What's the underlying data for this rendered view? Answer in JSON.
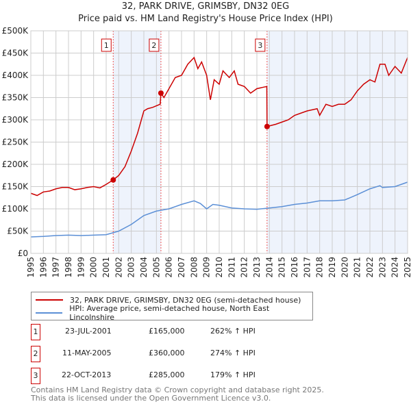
{
  "chart_data": {
    "type": "line",
    "title": "32, PARK DRIVE, GRIMSBY, DN32 0EG",
    "subtitle": "Price paid vs. HM Land Registry's House Price Index (HPI)",
    "xlim": [
      1995,
      2025
    ],
    "ylim": [
      0,
      500000
    ],
    "y_ticks": [
      "£0",
      "£50K",
      "£100K",
      "£150K",
      "£200K",
      "£250K",
      "£300K",
      "£350K",
      "£400K",
      "£450K",
      "£500K"
    ],
    "x_ticks": [
      "1995",
      "1996",
      "1997",
      "1998",
      "1999",
      "2000",
      "2001",
      "2002",
      "2003",
      "2004",
      "2005",
      "2006",
      "2007",
      "2008",
      "2009",
      "2010",
      "2011",
      "2012",
      "2013",
      "2014",
      "2015",
      "2016",
      "2017",
      "2018",
      "2019",
      "2020",
      "2021",
      "2022",
      "2023",
      "2024",
      "2025"
    ],
    "grid": true,
    "series": [
      {
        "name": "32, PARK DRIVE, GRIMSBY, DN32 0EG (semi-detached house)",
        "color": "#cc0000",
        "x": [
          1995,
          1995.5,
          1996,
          1996.5,
          1997,
          1997.5,
          1998,
          1998.5,
          1999,
          1999.5,
          2000,
          2000.5,
          2001,
          2001.56,
          2002,
          2002.5,
          2003,
          2003.5,
          2004,
          2004.3,
          2004.7,
          2005.3,
          2005.36,
          2005.6,
          2006,
          2006.5,
          2007,
          2007.5,
          2008,
          2008.3,
          2008.6,
          2009,
          2009.3,
          2009.6,
          2010,
          2010.3,
          2010.8,
          2011.2,
          2011.5,
          2012,
          2012.5,
          2013,
          2013.79,
          2013.81,
          2014.5,
          2015,
          2015.5,
          2016,
          2016.5,
          2017,
          2017.8,
          2018,
          2018.5,
          2019,
          2019.5,
          2020,
          2020.5,
          2021,
          2021.5,
          2022,
          2022.4,
          2022.8,
          2023.2,
          2023.5,
          2024,
          2024.5,
          2025
        ],
        "y": [
          135000,
          130000,
          138000,
          140000,
          145000,
          148000,
          148000,
          143000,
          145000,
          148000,
          150000,
          147000,
          155000,
          165000,
          175000,
          195000,
          230000,
          270000,
          320000,
          325000,
          328000,
          335000,
          360000,
          350000,
          370000,
          395000,
          400000,
          425000,
          440000,
          415000,
          430000,
          400000,
          345000,
          390000,
          380000,
          410000,
          395000,
          410000,
          380000,
          375000,
          360000,
          370000,
          375000,
          285000,
          290000,
          295000,
          300000,
          310000,
          315000,
          320000,
          325000,
          310000,
          335000,
          330000,
          335000,
          335000,
          345000,
          365000,
          380000,
          390000,
          385000,
          425000,
          425000,
          400000,
          420000,
          405000,
          440000
        ]
      },
      {
        "name": "HPI: Average price, semi-detached house, North East Lincolnshire",
        "color": "#5b8fd6",
        "x": [
          1995,
          1996,
          1997,
          1998,
          1999,
          2000,
          2001,
          2002,
          2003,
          2004,
          2005,
          2006,
          2007,
          2008,
          2008.5,
          2009,
          2009.5,
          2010,
          2011,
          2012,
          2013,
          2014,
          2015,
          2016,
          2017,
          2018,
          2019,
          2020,
          2021,
          2022,
          2022.8,
          2023,
          2024,
          2025
        ],
        "y": [
          37000,
          38000,
          40000,
          41000,
          40000,
          41000,
          42000,
          50000,
          65000,
          85000,
          95000,
          100000,
          110000,
          118000,
          112000,
          100000,
          110000,
          108000,
          102000,
          100000,
          99000,
          102000,
          105000,
          110000,
          113000,
          118000,
          118000,
          120000,
          132000,
          145000,
          152000,
          148000,
          150000,
          160000
        ]
      }
    ],
    "sales": [
      {
        "label": "1",
        "x": 2001.56,
        "y": 165000,
        "date": "23-JUL-2001",
        "price": "£165,000",
        "hpi": "262% ↑ HPI"
      },
      {
        "label": "2",
        "x": 2005.36,
        "y": 360000,
        "date": "11-MAY-2005",
        "price": "£360,000",
        "hpi": "274% ↑ HPI"
      },
      {
        "label": "3",
        "x": 2013.81,
        "y": 285000,
        "date": "22-OCT-2013",
        "price": "£285,000",
        "hpi": "179% ↑ HPI"
      }
    ]
  },
  "footer": {
    "line1": "Contains HM Land Registry data © Crown copyright and database right 2025.",
    "line2": "This data is licensed under the Open Government Licence v3.0."
  }
}
